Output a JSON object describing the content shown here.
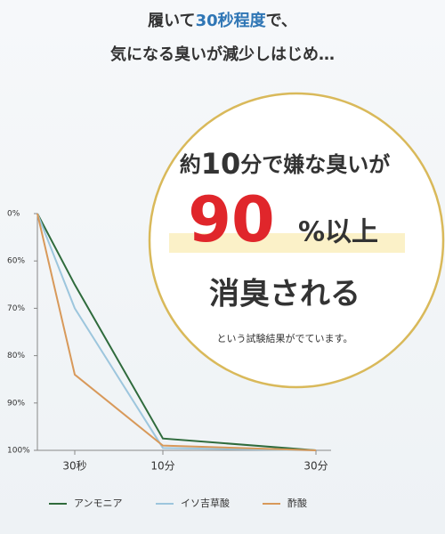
{
  "headline": {
    "line1": [
      "履いて",
      "30秒程度",
      "で、"
    ],
    "line2": "気になる臭いが減少しはじめ…"
  },
  "callout": {
    "line1": [
      "約",
      "10",
      "分で嫌な臭いが"
    ],
    "big": "90",
    "big_suffix": "%以上",
    "line3": "消臭される",
    "note": "という試験結果がでています。"
  },
  "chart_data": {
    "type": "line",
    "categories": [
      null,
      "30秒",
      "10分",
      "30分"
    ],
    "series": [
      {
        "name": "アンモニア",
        "color": "#2f6b3c",
        "values": [
          0,
          65,
          97.5,
          100
        ]
      },
      {
        "name": "イソ吉草酸",
        "color": "#9dc6dd",
        "values": [
          0,
          70,
          99.5,
          100
        ]
      },
      {
        "name": "酢酸",
        "color": "#d8995a",
        "values": [
          0,
          84,
          99,
          100
        ]
      }
    ],
    "ylim": [
      0,
      100
    ],
    "yticks": [
      {
        "value": 0,
        "label": "0%"
      },
      {
        "value": 60,
        "label": "60%"
      },
      {
        "value": 70,
        "label": "70%"
      },
      {
        "value": 80,
        "label": "80%"
      },
      {
        "value": 90,
        "label": "90%"
      },
      {
        "value": 100,
        "label": "100%"
      }
    ]
  }
}
